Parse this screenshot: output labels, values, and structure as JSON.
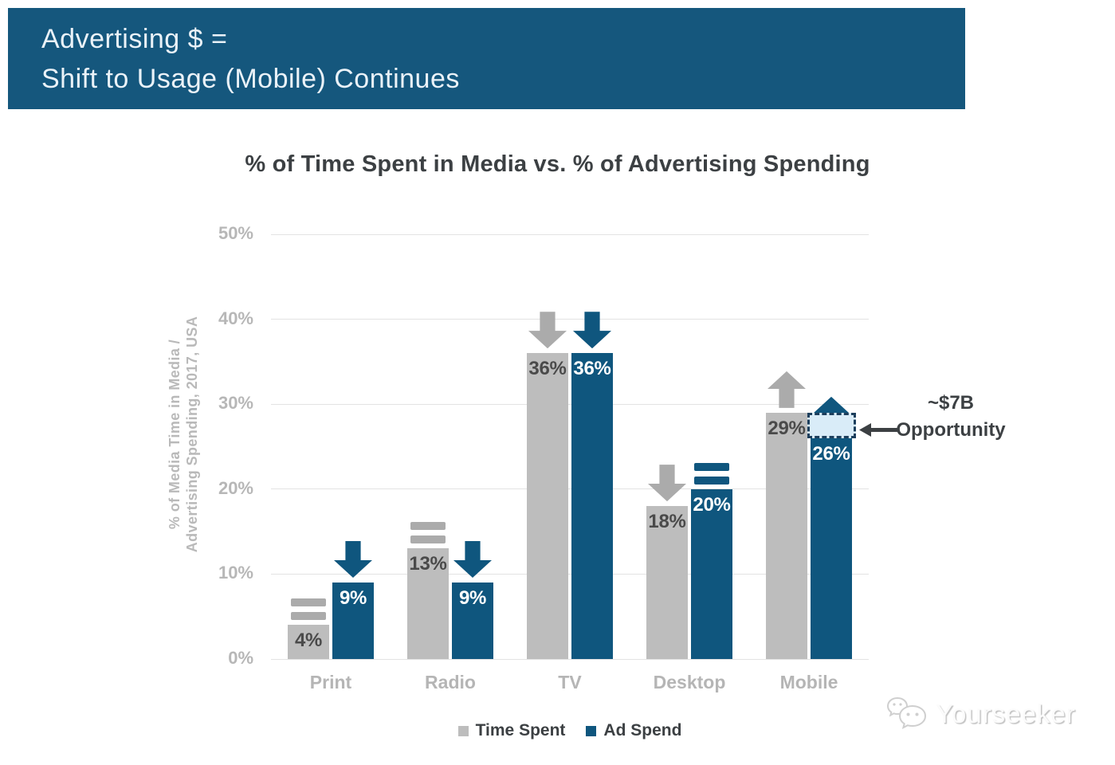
{
  "header": {
    "line1": "Advertising $ =",
    "line2": "Shift to Usage (Mobile) Continues"
  },
  "chart_data": {
    "type": "bar",
    "title": "% of Time Spent in Media vs. % of Advertising Spending",
    "ylabel_line1": "% of Media Time in Media /",
    "ylabel_line2": "Advertising Spending, 2017, USA",
    "categories": [
      "Print",
      "Radio",
      "TV",
      "Desktop",
      "Mobile"
    ],
    "series": [
      {
        "name": "Time Spent",
        "color": "#BDBDBD",
        "indicator_color": "#ABABAB",
        "values": [
          4,
          13,
          36,
          18,
          29
        ],
        "labels": [
          "4%",
          "13%",
          "36%",
          "18%",
          "29%"
        ],
        "label_color": "#4A4A4A",
        "trends": [
          "flat",
          "flat",
          "down",
          "down",
          "up"
        ]
      },
      {
        "name": "Ad Spend",
        "color": "#0F567E",
        "indicator_color": "#0F567E",
        "values": [
          9,
          9,
          36,
          20,
          26
        ],
        "labels": [
          "9%",
          "9%",
          "36%",
          "20%",
          "26%"
        ],
        "label_color": "#FFFFFF",
        "trends": [
          "down",
          "down",
          "down",
          "flat",
          "up"
        ]
      }
    ],
    "ylim": [
      0,
      50
    ],
    "yticks": [
      "0%",
      "10%",
      "20%",
      "30%",
      "40%",
      "50%"
    ],
    "grid": true,
    "legend_position": "bottom",
    "opportunity": {
      "category": "Mobile",
      "series": "Ad Spend",
      "from_value": 26,
      "to_value": 29,
      "label_line1": "~$7B",
      "label_line2": "Opportunity",
      "box_fill": "#D9ECF8",
      "box_border": "#1C3E5C"
    }
  },
  "watermark": {
    "text": "Yourseeker",
    "icon": "wechat-chat-bubbles-icon"
  },
  "colors": {
    "banner_bg": "#15577D",
    "banner_text": "#EAF2F8",
    "title_text": "#3C4043",
    "axis_text": "#B7B7B7",
    "gridline": "#E3E3E3",
    "annotation": "#3C4043"
  }
}
